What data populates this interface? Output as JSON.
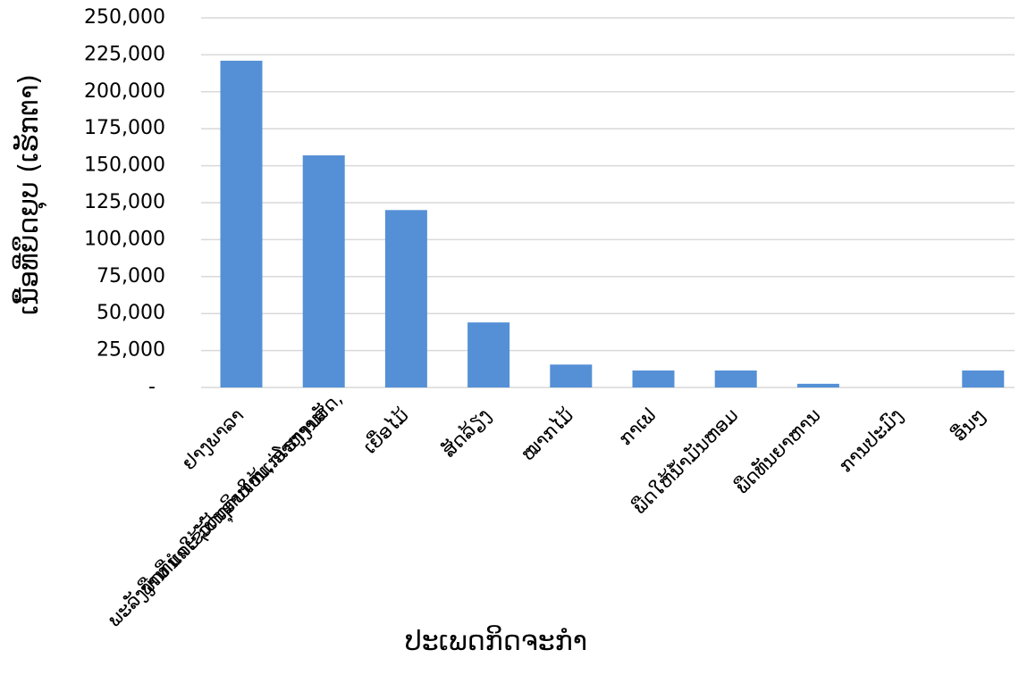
{
  "chart_data": {
    "type": "bar",
    "title": "",
    "xlabel": "ປະເພດກິດຈະກຳ",
    "ylabel": "ເນື້ອທີ່ຍຶດຍຸບ (ເຮັກຕາ)",
    "ylim": [
      0,
      250000
    ],
    "yticks": [
      {
        "value": 0,
        "label": "-"
      },
      {
        "value": 25000,
        "label": "25,000"
      },
      {
        "value": 50000,
        "label": "50,000"
      },
      {
        "value": 75000,
        "label": "75,000"
      },
      {
        "value": 100000,
        "label": "100,000"
      },
      {
        "value": 125000,
        "label": "125,000"
      },
      {
        "value": 150000,
        "label": "150,000"
      },
      {
        "value": 175000,
        "label": "175,000"
      },
      {
        "value": 200000,
        "label": "200,000"
      },
      {
        "value": 225000,
        "label": "225,000"
      },
      {
        "value": 250000,
        "label": "250,000"
      }
    ],
    "categories": [
      [
        "ຢາງພາລາ"
      ],
      [
        "ພືດທີ່ນຳໃຊ້ເປັນອາຫານ, ອາຫານສັດ,",
        "ພະລັງງານ ແລະ ວັດຖຸດິບໃຫ້ແກ່ໂຮງງານ"
      ],
      [
        "ເຍື່ອໄມ້"
      ],
      [
        "ສັດລ້ຽງ"
      ],
      [
        "ໝາກໄມ້"
      ],
      [
        "ກາເຟ"
      ],
      [
        "ພືດໃຫ້ນ້ຳມັນຫອມ"
      ],
      [
        "ພືດທັນຍາຫານ"
      ],
      [
        "ການປະມົງ"
      ],
      [
        "ອື່ນໆ"
      ]
    ],
    "values": [
      221000,
      157000,
      120000,
      44000,
      15500,
      11500,
      11500,
      2500,
      0,
      11500
    ],
    "bar_color": "#5590d6",
    "grid": true,
    "legend": "none"
  }
}
